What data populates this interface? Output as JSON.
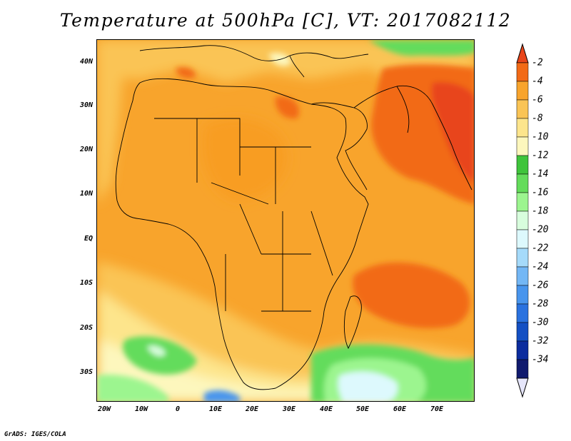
{
  "title": "Temperature at 500hPa [C], VT: 2017082112",
  "credit": "GrADS: IGES/COLA",
  "map": {
    "lat_labels": [
      "40N",
      "30N",
      "20N",
      "10N",
      "EQ",
      "10S",
      "20S",
      "30S"
    ],
    "lon_labels": [
      "20W",
      "10W",
      "0",
      "10E",
      "20E",
      "30E",
      "40E",
      "50E",
      "60E",
      "70E"
    ],
    "background_color": "#f8a42c"
  },
  "colorbar": {
    "labels": [
      "-2",
      "-4",
      "-6",
      "-8",
      "-10",
      "-12",
      "-14",
      "-16",
      "-18",
      "-20",
      "-22",
      "-24",
      "-26",
      "-28",
      "-30",
      "-32",
      "-34"
    ],
    "colors": [
      "#e8451a",
      "#f26a16",
      "#f8a42c",
      "#fac455",
      "#fde58c",
      "#fdf7bd",
      "#3fc43b",
      "#64dc5b",
      "#9cf58f",
      "#d8fddd",
      "#ddf9fd",
      "#a5dafa",
      "#73b7f5",
      "#4895ed",
      "#2a72df",
      "#1450c3",
      "#0b2c9e",
      "#101a6e",
      "#e6e6fb"
    ]
  }
}
